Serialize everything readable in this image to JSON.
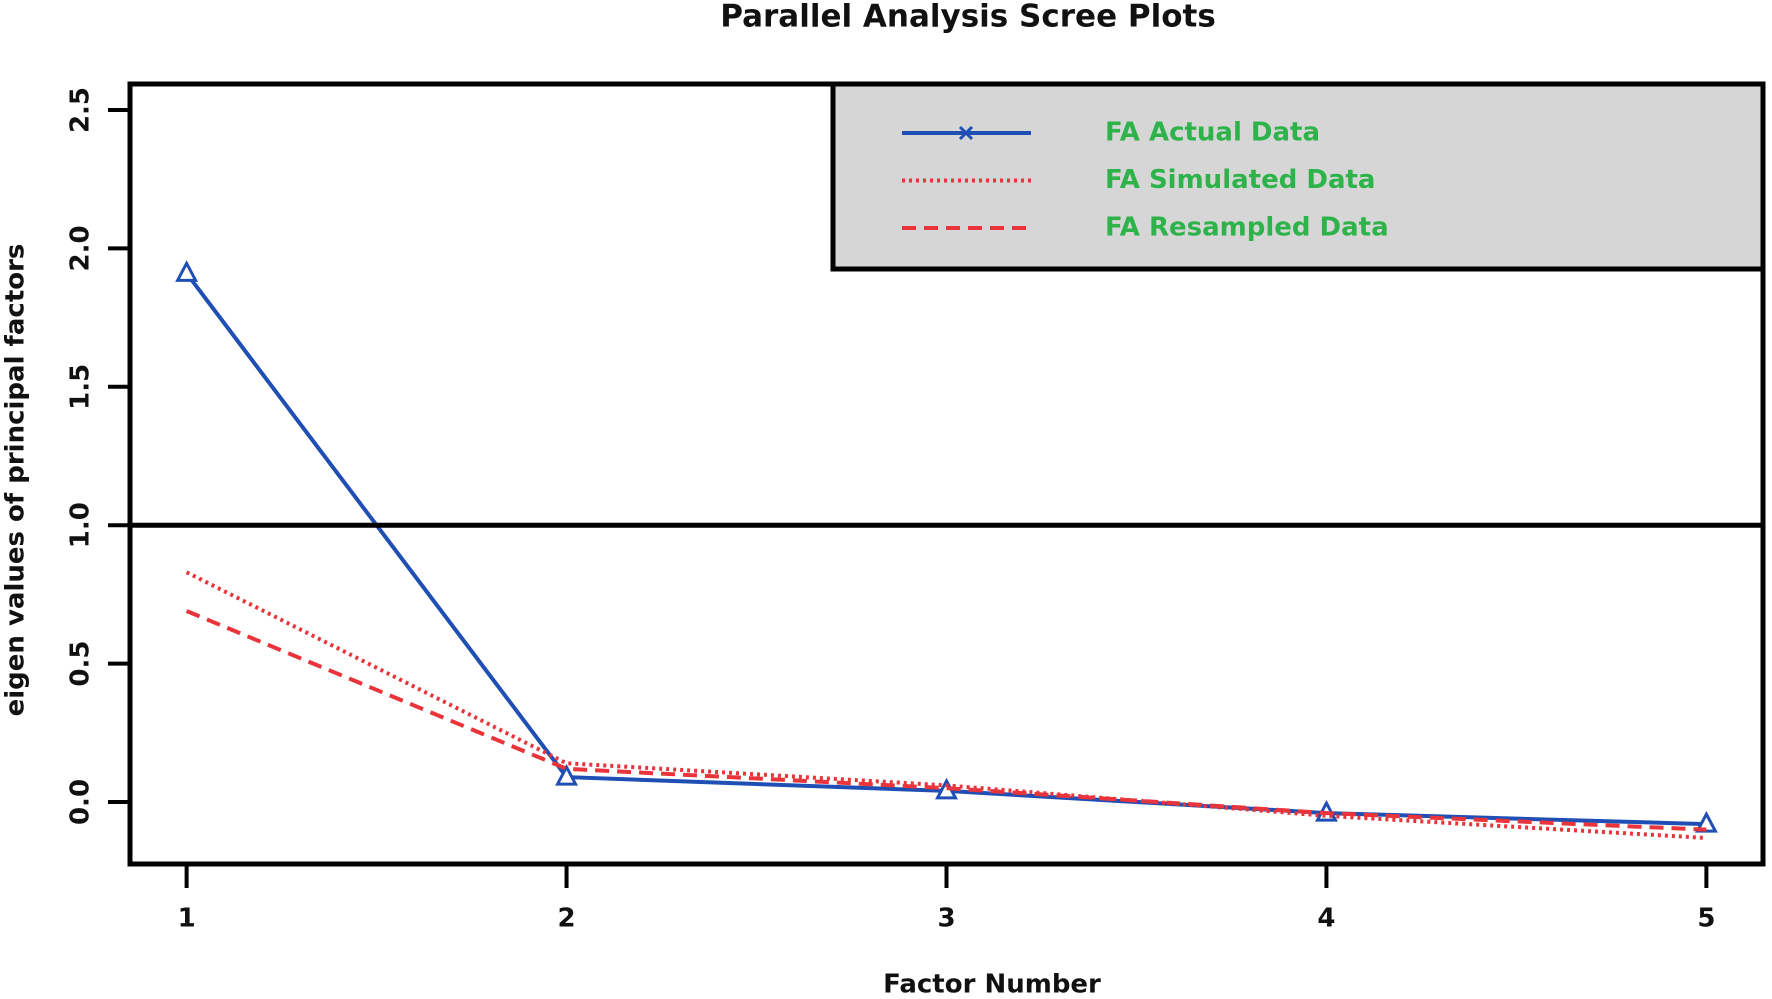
{
  "chart_data": {
    "type": "line",
    "title": "Parallel Analysis Scree Plots",
    "x_label": "Factor Number",
    "y_label": "eigen values of principal factors",
    "x": [
      1,
      2,
      3,
      4,
      5
    ],
    "series": [
      {
        "name": "FA Actual Data",
        "color": "#1f4fb4",
        "style": "solid",
        "marker": "triangle",
        "values": [
          1.91,
          0.09,
          0.04,
          -0.04,
          -0.08
        ]
      },
      {
        "name": "FA Simulated Data",
        "color": "#e8343a",
        "style": "dotted",
        "values": [
          0.83,
          0.14,
          0.06,
          -0.05,
          -0.13
        ]
      },
      {
        "name": "FA Resampled Data",
        "color": "#e8343a",
        "style": "dashed",
        "values": [
          0.69,
          0.12,
          0.05,
          -0.04,
          -0.1
        ]
      }
    ],
    "hline": 1,
    "xlim": [
      0.851,
      5.149
    ],
    "ylim": [
      -0.224,
      2.594
    ],
    "xticks": [
      1,
      2,
      3,
      4,
      5
    ],
    "yticks": [
      {
        "value": 0,
        "label": "0.0"
      },
      {
        "value": 0.5,
        "label": "0.5"
      },
      {
        "value": 1,
        "label": "1.0"
      },
      {
        "value": 1.5,
        "label": "1.5"
      },
      {
        "value": 2,
        "label": "2.0"
      },
      {
        "value": 2.5,
        "label": "2.5"
      }
    ],
    "legend": "top-right",
    "legend_background": "#d6d6d6",
    "legend_text_color": "#2db34a"
  }
}
